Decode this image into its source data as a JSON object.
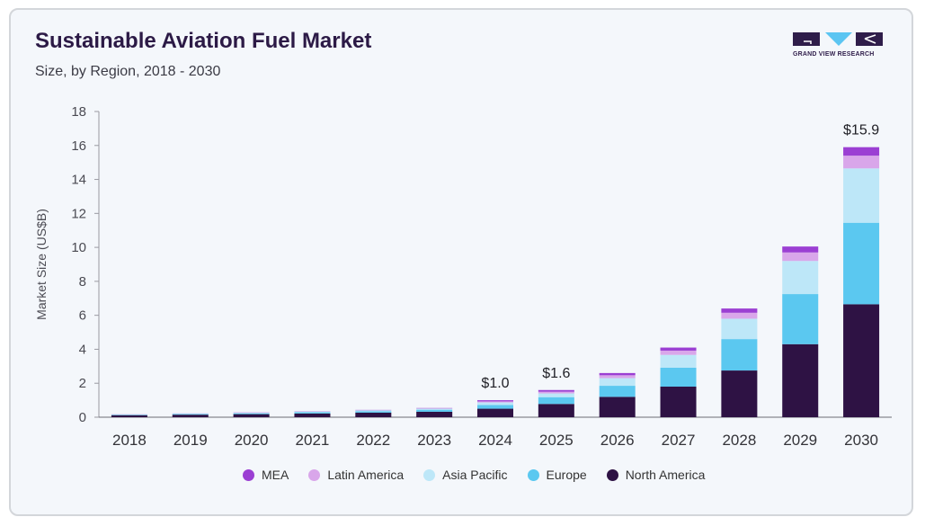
{
  "header": {
    "title": "Sustainable Aviation Fuel Market",
    "subtitle": "Size, by Region, 2018 - 2030"
  },
  "logo": {
    "text": "GRAND VIEW RESEARCH",
    "color_dark": "#2f1d4a",
    "color_accent": "#5bc5f2"
  },
  "chart_data": {
    "type": "bar",
    "stacked": true,
    "categories": [
      "2018",
      "2019",
      "2020",
      "2021",
      "2022",
      "2023",
      "2024",
      "2025",
      "2026",
      "2027",
      "2028",
      "2029",
      "2030"
    ],
    "ylabel": "Market Size (US$B)",
    "xlabel": "",
    "ylim": [
      0,
      18
    ],
    "yticks": [
      0,
      2,
      4,
      6,
      8,
      10,
      12,
      14,
      16,
      18
    ],
    "grid": false,
    "legend_position": "bottom",
    "series": [
      {
        "name": "North America",
        "color": "#2e1244",
        "values": [
          0.12,
          0.15,
          0.18,
          0.22,
          0.27,
          0.32,
          0.5,
          0.78,
          1.2,
          1.8,
          2.75,
          4.3,
          6.65
        ]
      },
      {
        "name": "Europe",
        "color": "#5bc8f0",
        "values": [
          0.03,
          0.04,
          0.05,
          0.07,
          0.08,
          0.12,
          0.22,
          0.4,
          0.65,
          1.12,
          1.85,
          2.95,
          4.8
        ]
      },
      {
        "name": "Asia Pacific",
        "color": "#bde7f8",
        "values": [
          0.01,
          0.02,
          0.03,
          0.04,
          0.05,
          0.06,
          0.15,
          0.22,
          0.45,
          0.75,
          1.2,
          1.95,
          3.2
        ]
      },
      {
        "name": "Latin America",
        "color": "#d9a6ea",
        "values": [
          0.005,
          0.005,
          0.01,
          0.01,
          0.015,
          0.02,
          0.06,
          0.1,
          0.17,
          0.25,
          0.35,
          0.5,
          0.75
        ]
      },
      {
        "name": "MEA",
        "color": "#9b3fd3",
        "values": [
          0.005,
          0.005,
          0.01,
          0.01,
          0.015,
          0.02,
          0.07,
          0.1,
          0.13,
          0.18,
          0.25,
          0.35,
          0.5
        ]
      }
    ],
    "annotations": [
      {
        "category": "2024",
        "label": "$1.0"
      },
      {
        "category": "2025",
        "label": "$1.6"
      },
      {
        "category": "2030",
        "label": "$15.9"
      }
    ],
    "legend_order": [
      "MEA",
      "Latin America",
      "Asia Pacific",
      "Europe",
      "North America"
    ]
  }
}
